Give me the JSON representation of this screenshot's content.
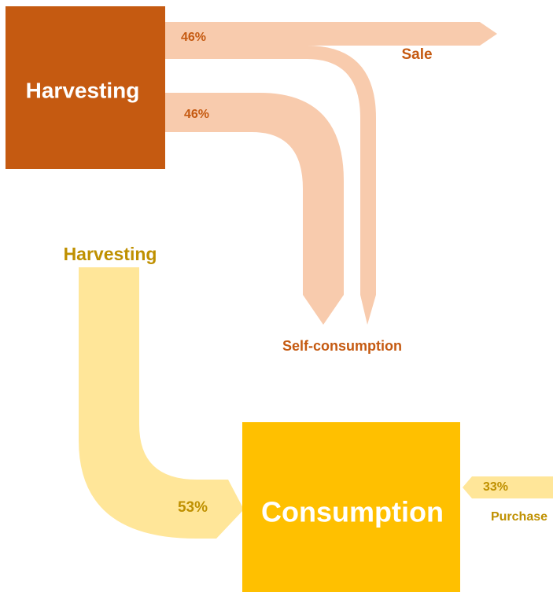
{
  "nodes": [
    {
      "label": "Harvesting"
    },
    {
      "label": "Consumption"
    }
  ],
  "flows": [
    {
      "label": "46%",
      "target": "Sale"
    },
    {
      "label": "46%",
      "target": "Self-consumption"
    },
    {
      "source": "Harvesting",
      "label": "53%"
    },
    {
      "label": "33%",
      "source": "Purchase"
    }
  ]
}
